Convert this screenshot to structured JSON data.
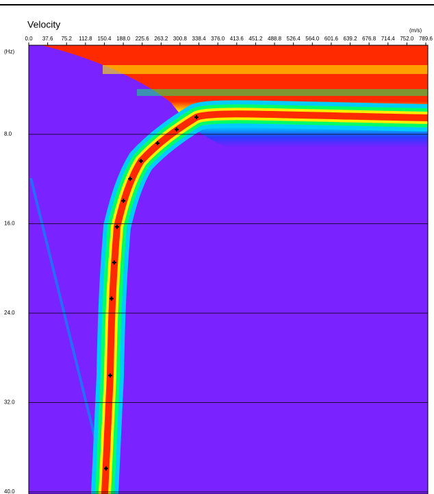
{
  "chart_data": {
    "type": "scatter",
    "title": "Velocity",
    "x_unit": "(m/s)",
    "y_unit": "(Hz)",
    "x": [
      333.6,
      294.0,
      256.0,
      223.0,
      201.5,
      188.0,
      175.6,
      170.0,
      164.7,
      162.0,
      153.8
    ],
    "values": [
      6.47,
      7.57,
      8.8,
      10.39,
      11.99,
      13.95,
      16.28,
      19.47,
      22.7,
      29.58,
      37.9
    ],
    "color": "#000000",
    "xlim": [
      0,
      789.6
    ],
    "xticks": [
      {
        "value": 0,
        "label": "0.0"
      },
      37.6,
      75.2,
      112.8,
      150.4,
      {
        "value": 188,
        "label": "188.0"
      },
      225.6,
      263.2,
      300.8,
      338.4,
      {
        "value": 376,
        "label": "376.0"
      },
      413.6,
      451.2,
      488.8,
      526.4,
      {
        "value": 564,
        "label": "564.0"
      },
      601.6,
      639.2,
      676.8,
      714.4,
      {
        "value": 752,
        "label": "752.0"
      },
      789.6
    ],
    "ylim": [
      0,
      40
    ],
    "yticks": [
      {
        "value": 8,
        "label": "8.0"
      },
      {
        "value": 16,
        "label": "16.0"
      },
      {
        "value": 24,
        "label": "24.0"
      },
      {
        "value": 32,
        "label": "32.0"
      },
      {
        "value": 40,
        "label": "40.0"
      }
    ],
    "grid": true
  }
}
